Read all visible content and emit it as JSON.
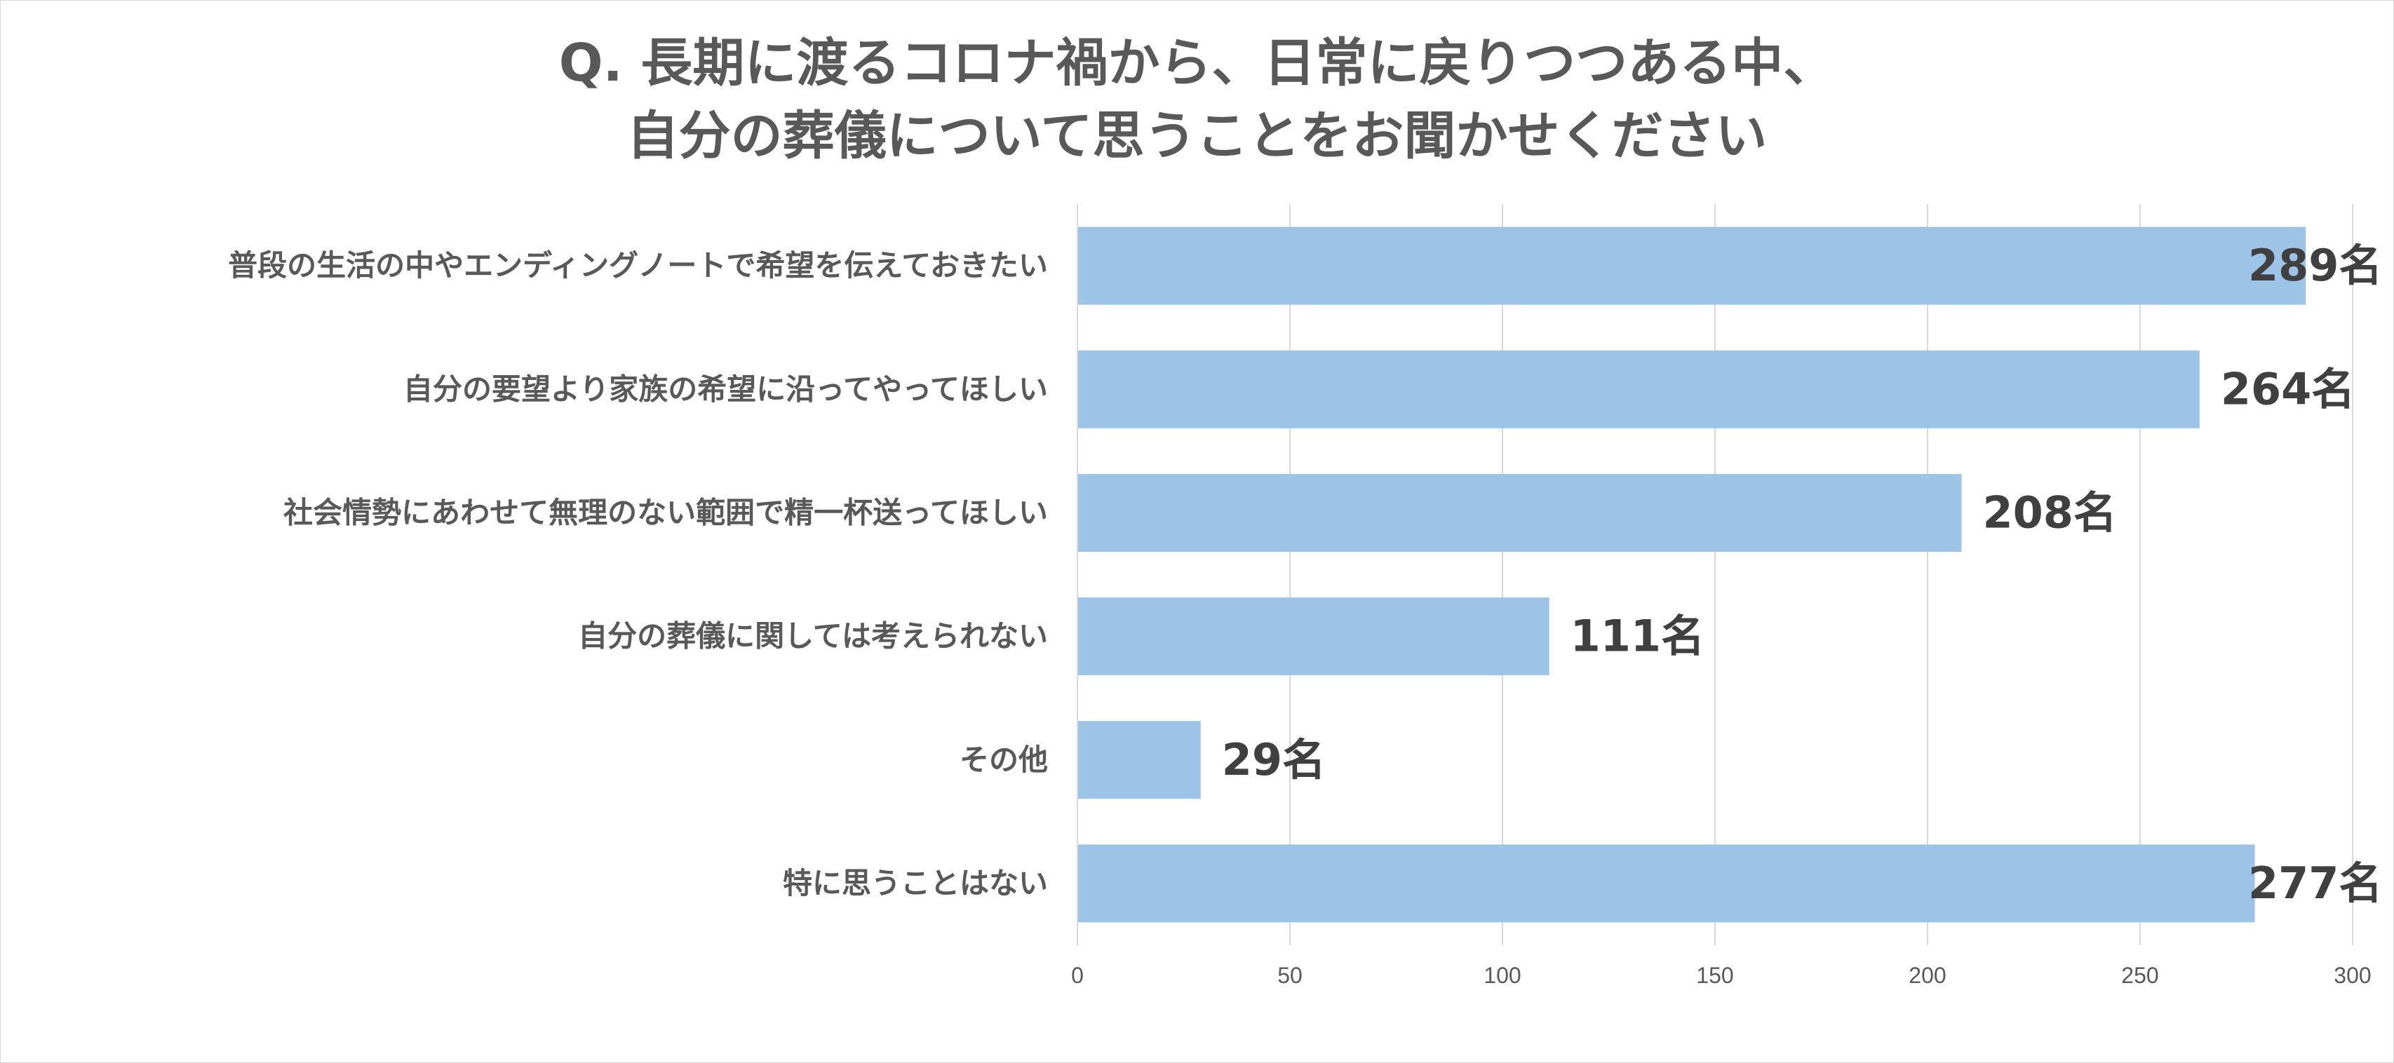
{
  "chart_data": {
    "type": "bar",
    "orientation": "horizontal",
    "title_lines": [
      "Q. 長期に渡るコロナ禍から、日常に戻りつつある中、",
      "自分の葬儀について思うことをお聞かせください"
    ],
    "categories": [
      "普段の生活の中やエンディングノートで希望を伝えておきたい",
      "自分の要望より家族の希望に沿ってやってほしい",
      "社会情勢にあわせて無理のない範囲で精一杯送ってほしい",
      "自分の葬儀に関しては考えられない",
      "その他",
      "特に思うことはない"
    ],
    "values": [
      289,
      264,
      208,
      111,
      29,
      277
    ],
    "data_labels": [
      "289名",
      "264名",
      "208名",
      "111名",
      "29名",
      "277名"
    ],
    "xlim": [
      0,
      300
    ],
    "xticks": [
      "0",
      "50",
      "100",
      "150",
      "200",
      "250",
      "300"
    ],
    "grid": true,
    "legend": false,
    "colors": {
      "bar": "#9dc3e6",
      "grid": "#d9d9d9",
      "text": "#595959",
      "data_label": "#404040"
    }
  }
}
